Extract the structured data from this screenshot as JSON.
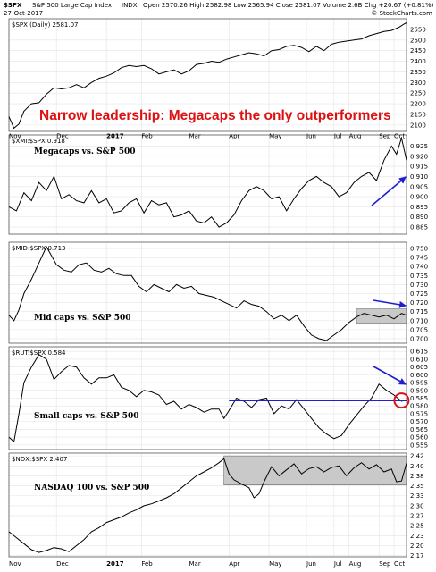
{
  "header": {
    "symbol": "$SPX",
    "name": "S&P 500 Large Cap Index",
    "exchange": "INDX",
    "date": "27-Oct-2017",
    "ohlc": "Open 2570.26  High 2582.98  Low 2565.94  Close 2581.07  Volume 2.6B  Chg +20.67 (+0.81%)",
    "credit": "© StockCharts.com"
  },
  "headline": "Narrow leadership: Megacaps the only outperformers",
  "colors": {
    "headline": "#dd1111",
    "arrow": "#1f1fd0",
    "highlight_box": "#c9c9c9",
    "circle": "#dd1111",
    "line": "#000000",
    "grid": "#e4e4e4"
  },
  "chart_data": [
    {
      "type": "line",
      "legend": "$SPX (Daily) 2581.07",
      "series_label": "",
      "ylim": [
        2070,
        2600
      ],
      "yticks": [
        2100,
        2150,
        2200,
        2250,
        2300,
        2350,
        2400,
        2450,
        2500,
        2550
      ],
      "points": [
        [
          0,
          2140
        ],
        [
          2,
          2085
        ],
        [
          4,
          2105
        ],
        [
          6,
          2165
        ],
        [
          9,
          2200
        ],
        [
          12,
          2205
        ],
        [
          15,
          2245
        ],
        [
          18,
          2275
        ],
        [
          21,
          2270
        ],
        [
          24,
          2275
        ],
        [
          27,
          2290
        ],
        [
          30,
          2275
        ],
        [
          33,
          2300
        ],
        [
          36,
          2320
        ],
        [
          39,
          2330
        ],
        [
          42,
          2345
        ],
        [
          45,
          2370
        ],
        [
          48,
          2380
        ],
        [
          51,
          2375
        ],
        [
          54,
          2380
        ],
        [
          57,
          2365
        ],
        [
          60,
          2340
        ],
        [
          63,
          2350
        ],
        [
          66,
          2360
        ],
        [
          69,
          2340
        ],
        [
          72,
          2355
        ],
        [
          75,
          2385
        ],
        [
          78,
          2390
        ],
        [
          81,
          2400
        ],
        [
          84,
          2395
        ],
        [
          87,
          2410
        ],
        [
          90,
          2420
        ],
        [
          93,
          2430
        ],
        [
          96,
          2440
        ],
        [
          99,
          2435
        ],
        [
          102,
          2425
        ],
        [
          105,
          2450
        ],
        [
          108,
          2455
        ],
        [
          111,
          2470
        ],
        [
          114,
          2475
        ],
        [
          117,
          2465
        ],
        [
          120,
          2445
        ],
        [
          123,
          2470
        ],
        [
          126,
          2450
        ],
        [
          129,
          2480
        ],
        [
          132,
          2490
        ],
        [
          135,
          2495
        ],
        [
          138,
          2500
        ],
        [
          141,
          2505
        ],
        [
          144,
          2520
        ],
        [
          147,
          2530
        ],
        [
          150,
          2540
        ],
        [
          153,
          2545
        ],
        [
          156,
          2560
        ],
        [
          158,
          2575
        ],
        [
          159,
          2581
        ]
      ]
    },
    {
      "type": "line",
      "legend": "$XMI:$SPX 0.918",
      "series_label": "Megacaps vs. S&P 500",
      "ylim": [
        0.8815,
        0.9305
      ],
      "yticks": [
        0.885,
        0.89,
        0.895,
        0.9,
        0.905,
        0.91,
        0.915,
        0.92,
        0.925
      ],
      "points": [
        [
          0,
          0.895
        ],
        [
          3,
          0.893
        ],
        [
          6,
          0.902
        ],
        [
          9,
          0.898
        ],
        [
          12,
          0.907
        ],
        [
          15,
          0.903
        ],
        [
          18,
          0.91
        ],
        [
          21,
          0.899
        ],
        [
          24,
          0.901
        ],
        [
          27,
          0.898
        ],
        [
          30,
          0.897
        ],
        [
          33,
          0.903
        ],
        [
          36,
          0.897
        ],
        [
          39,
          0.899
        ],
        [
          42,
          0.892
        ],
        [
          45,
          0.893
        ],
        [
          48,
          0.897
        ],
        [
          51,
          0.899
        ],
        [
          54,
          0.892
        ],
        [
          57,
          0.898
        ],
        [
          60,
          0.896
        ],
        [
          63,
          0.897
        ],
        [
          66,
          0.89
        ],
        [
          69,
          0.891
        ],
        [
          72,
          0.893
        ],
        [
          75,
          0.888
        ],
        [
          78,
          0.887
        ],
        [
          81,
          0.89
        ],
        [
          84,
          0.885
        ],
        [
          87,
          0.887
        ],
        [
          90,
          0.891
        ],
        [
          93,
          0.898
        ],
        [
          96,
          0.903
        ],
        [
          99,
          0.905
        ],
        [
          102,
          0.903
        ],
        [
          105,
          0.899
        ],
        [
          108,
          0.9
        ],
        [
          111,
          0.893
        ],
        [
          114,
          0.899
        ],
        [
          117,
          0.904
        ],
        [
          120,
          0.908
        ],
        [
          123,
          0.91
        ],
        [
          126,
          0.907
        ],
        [
          129,
          0.905
        ],
        [
          132,
          0.9
        ],
        [
          135,
          0.902
        ],
        [
          138,
          0.907
        ],
        [
          141,
          0.91
        ],
        [
          144,
          0.912
        ],
        [
          147,
          0.908
        ],
        [
          150,
          0.918
        ],
        [
          153,
          0.925
        ],
        [
          155,
          0.921
        ],
        [
          157,
          0.929
        ],
        [
          159,
          0.918
        ]
      ]
    },
    {
      "type": "line",
      "legend": "$MID:$SPX 0.713",
      "series_label": "Mid caps vs. S&P 500",
      "ylim": [
        0.6975,
        0.7535
      ],
      "yticks": [
        0.7,
        0.705,
        0.71,
        0.715,
        0.72,
        0.725,
        0.73,
        0.735,
        0.74,
        0.745,
        0.75
      ],
      "points": [
        [
          0,
          0.713
        ],
        [
          2,
          0.71
        ],
        [
          4,
          0.716
        ],
        [
          6,
          0.725
        ],
        [
          9,
          0.733
        ],
        [
          12,
          0.742
        ],
        [
          15,
          0.751
        ],
        [
          17,
          0.746
        ],
        [
          19,
          0.741
        ],
        [
          22,
          0.738
        ],
        [
          25,
          0.737
        ],
        [
          28,
          0.741
        ],
        [
          31,
          0.742
        ],
        [
          34,
          0.738
        ],
        [
          37,
          0.737
        ],
        [
          40,
          0.739
        ],
        [
          43,
          0.736
        ],
        [
          46,
          0.735
        ],
        [
          49,
          0.735
        ],
        [
          52,
          0.729
        ],
        [
          55,
          0.726
        ],
        [
          58,
          0.73
        ],
        [
          61,
          0.728
        ],
        [
          64,
          0.726
        ],
        [
          67,
          0.73
        ],
        [
          70,
          0.728
        ],
        [
          73,
          0.729
        ],
        [
          76,
          0.725
        ],
        [
          79,
          0.724
        ],
        [
          82,
          0.723
        ],
        [
          85,
          0.721
        ],
        [
          88,
          0.719
        ],
        [
          91,
          0.717
        ],
        [
          94,
          0.721
        ],
        [
          97,
          0.719
        ],
        [
          100,
          0.718
        ],
        [
          103,
          0.715
        ],
        [
          106,
          0.711
        ],
        [
          109,
          0.713
        ],
        [
          112,
          0.71
        ],
        [
          115,
          0.713
        ],
        [
          118,
          0.707
        ],
        [
          121,
          0.702
        ],
        [
          124,
          0.7
        ],
        [
          127,
          0.699
        ],
        [
          130,
          0.702
        ],
        [
          133,
          0.705
        ],
        [
          136,
          0.709
        ],
        [
          139,
          0.712
        ],
        [
          142,
          0.714
        ],
        [
          145,
          0.713
        ],
        [
          148,
          0.712
        ],
        [
          151,
          0.713
        ],
        [
          154,
          0.711
        ],
        [
          157,
          0.714
        ],
        [
          159,
          0.713
        ]
      ]
    },
    {
      "type": "line",
      "legend": "$RUT:$SPX 0.584",
      "series_label": "Small caps vs. S&P 500",
      "ylim": [
        0.552,
        0.618
      ],
      "yticks": [
        0.555,
        0.56,
        0.565,
        0.57,
        0.575,
        0.58,
        0.585,
        0.59,
        0.595,
        0.6,
        0.605,
        0.61,
        0.615
      ],
      "points": [
        [
          0,
          0.56
        ],
        [
          2,
          0.557
        ],
        [
          4,
          0.575
        ],
        [
          6,
          0.595
        ],
        [
          9,
          0.605
        ],
        [
          12,
          0.613
        ],
        [
          15,
          0.61
        ],
        [
          18,
          0.597
        ],
        [
          21,
          0.602
        ],
        [
          24,
          0.606
        ],
        [
          27,
          0.605
        ],
        [
          30,
          0.598
        ],
        [
          33,
          0.594
        ],
        [
          36,
          0.598
        ],
        [
          39,
          0.598
        ],
        [
          42,
          0.6
        ],
        [
          45,
          0.592
        ],
        [
          48,
          0.59
        ],
        [
          51,
          0.586
        ],
        [
          54,
          0.59
        ],
        [
          57,
          0.589
        ],
        [
          60,
          0.587
        ],
        [
          63,
          0.581
        ],
        [
          66,
          0.583
        ],
        [
          69,
          0.578
        ],
        [
          72,
          0.581
        ],
        [
          75,
          0.579
        ],
        [
          78,
          0.576
        ],
        [
          81,
          0.578
        ],
        [
          84,
          0.578
        ],
        [
          86,
          0.572
        ],
        [
          88,
          0.577
        ],
        [
          91,
          0.585
        ],
        [
          94,
          0.583
        ],
        [
          97,
          0.579
        ],
        [
          100,
          0.584
        ],
        [
          103,
          0.585
        ],
        [
          106,
          0.575
        ],
        [
          109,
          0.58
        ],
        [
          112,
          0.578
        ],
        [
          115,
          0.584
        ],
        [
          118,
          0.578
        ],
        [
          121,
          0.572
        ],
        [
          124,
          0.566
        ],
        [
          127,
          0.562
        ],
        [
          130,
          0.559
        ],
        [
          133,
          0.561
        ],
        [
          136,
          0.568
        ],
        [
          139,
          0.574
        ],
        [
          142,
          0.58
        ],
        [
          145,
          0.585
        ],
        [
          148,
          0.594
        ],
        [
          151,
          0.59
        ],
        [
          154,
          0.587
        ],
        [
          157,
          0.583
        ],
        [
          159,
          0.584
        ]
      ]
    },
    {
      "type": "line",
      "legend": "$NDX:$SPX 2.407",
      "series_label": "NASDAQ 100 vs. S&P 500",
      "ylim": [
        2.172,
        2.432
      ],
      "yticks": [
        2.175,
        2.2,
        2.225,
        2.25,
        2.275,
        2.3,
        2.325,
        2.35,
        2.375,
        2.4,
        2.425
      ],
      "points": [
        [
          0,
          2.235
        ],
        [
          3,
          2.22
        ],
        [
          6,
          2.205
        ],
        [
          9,
          2.19
        ],
        [
          12,
          2.183
        ],
        [
          15,
          2.188
        ],
        [
          18,
          2.195
        ],
        [
          21,
          2.192
        ],
        [
          24,
          2.185
        ],
        [
          27,
          2.2
        ],
        [
          30,
          2.215
        ],
        [
          33,
          2.235
        ],
        [
          36,
          2.245
        ],
        [
          39,
          2.258
        ],
        [
          42,
          2.265
        ],
        [
          45,
          2.272
        ],
        [
          48,
          2.282
        ],
        [
          51,
          2.29
        ],
        [
          54,
          2.3
        ],
        [
          57,
          2.305
        ],
        [
          60,
          2.312
        ],
        [
          63,
          2.32
        ],
        [
          66,
          2.33
        ],
        [
          69,
          2.345
        ],
        [
          72,
          2.36
        ],
        [
          75,
          2.375
        ],
        [
          78,
          2.385
        ],
        [
          81,
          2.395
        ],
        [
          84,
          2.408
        ],
        [
          86,
          2.418
        ],
        [
          88,
          2.38
        ],
        [
          90,
          2.365
        ],
        [
          93,
          2.355
        ],
        [
          96,
          2.345
        ],
        [
          98,
          2.32
        ],
        [
          100,
          2.33
        ],
        [
          102,
          2.36
        ],
        [
          105,
          2.398
        ],
        [
          108,
          2.375
        ],
        [
          111,
          2.39
        ],
        [
          114,
          2.405
        ],
        [
          117,
          2.38
        ],
        [
          120,
          2.393
        ],
        [
          123,
          2.398
        ],
        [
          126,
          2.385
        ],
        [
          129,
          2.396
        ],
        [
          132,
          2.4
        ],
        [
          135,
          2.375
        ],
        [
          138,
          2.395
        ],
        [
          141,
          2.408
        ],
        [
          144,
          2.392
        ],
        [
          147,
          2.403
        ],
        [
          150,
          2.385
        ],
        [
          153,
          2.392
        ],
        [
          155,
          2.36
        ],
        [
          157,
          2.362
        ],
        [
          159,
          2.407
        ]
      ]
    }
  ],
  "x_axis": {
    "months": [
      "Nov",
      "Dec",
      "2017",
      "Feb",
      "Mar",
      "Apr",
      "May",
      "Jun",
      "Jul",
      "Aug",
      "Sep",
      "Oct"
    ],
    "month_starts": [
      0,
      19,
      39,
      53,
      72,
      88,
      104,
      119,
      130,
      136,
      148,
      154
    ]
  }
}
